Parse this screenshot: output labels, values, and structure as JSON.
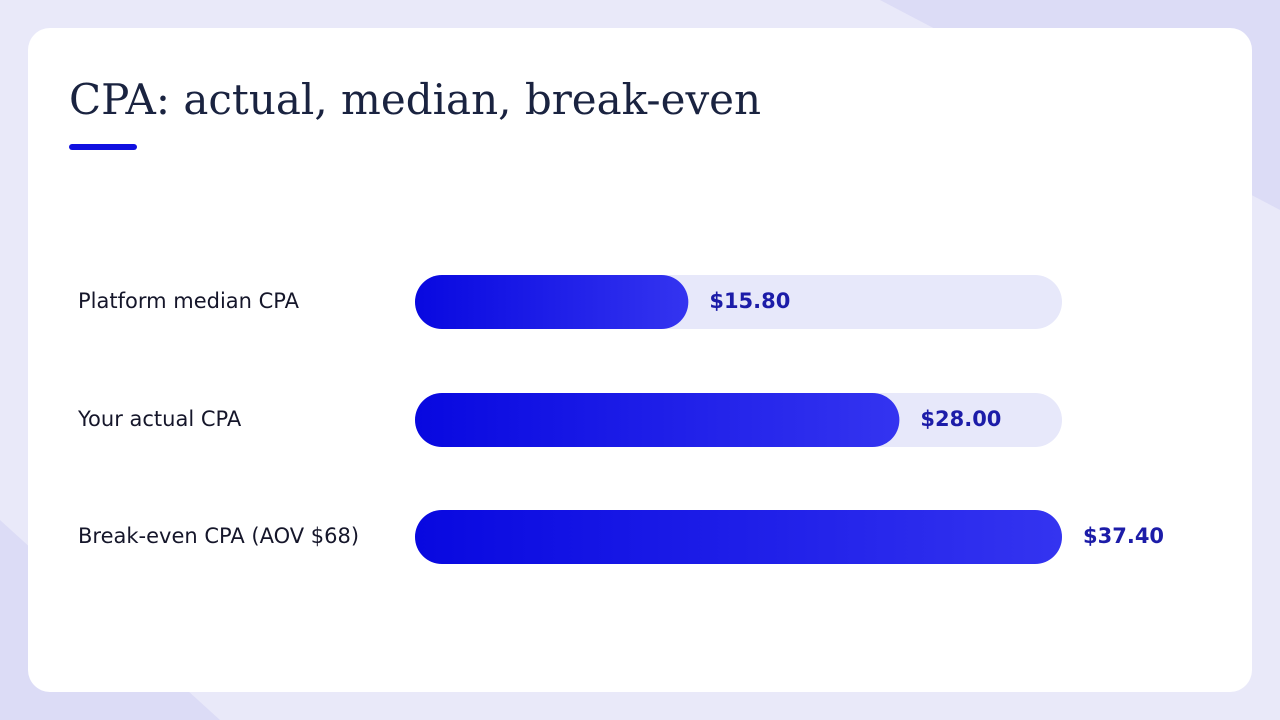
{
  "chart_data": {
    "type": "hbar",
    "title": "CPA: actual, median, break-even",
    "categories": [
      "Platform median CPA",
      "Your actual CPA",
      "Break-even CPA (AOV $68)"
    ],
    "values": [
      15.8,
      28.0,
      37.4
    ],
    "value_labels": [
      "$15.80",
      "$28.00",
      "$37.40"
    ],
    "color": "#0b0be6",
    "xlim": [
      0,
      37.4
    ]
  }
}
